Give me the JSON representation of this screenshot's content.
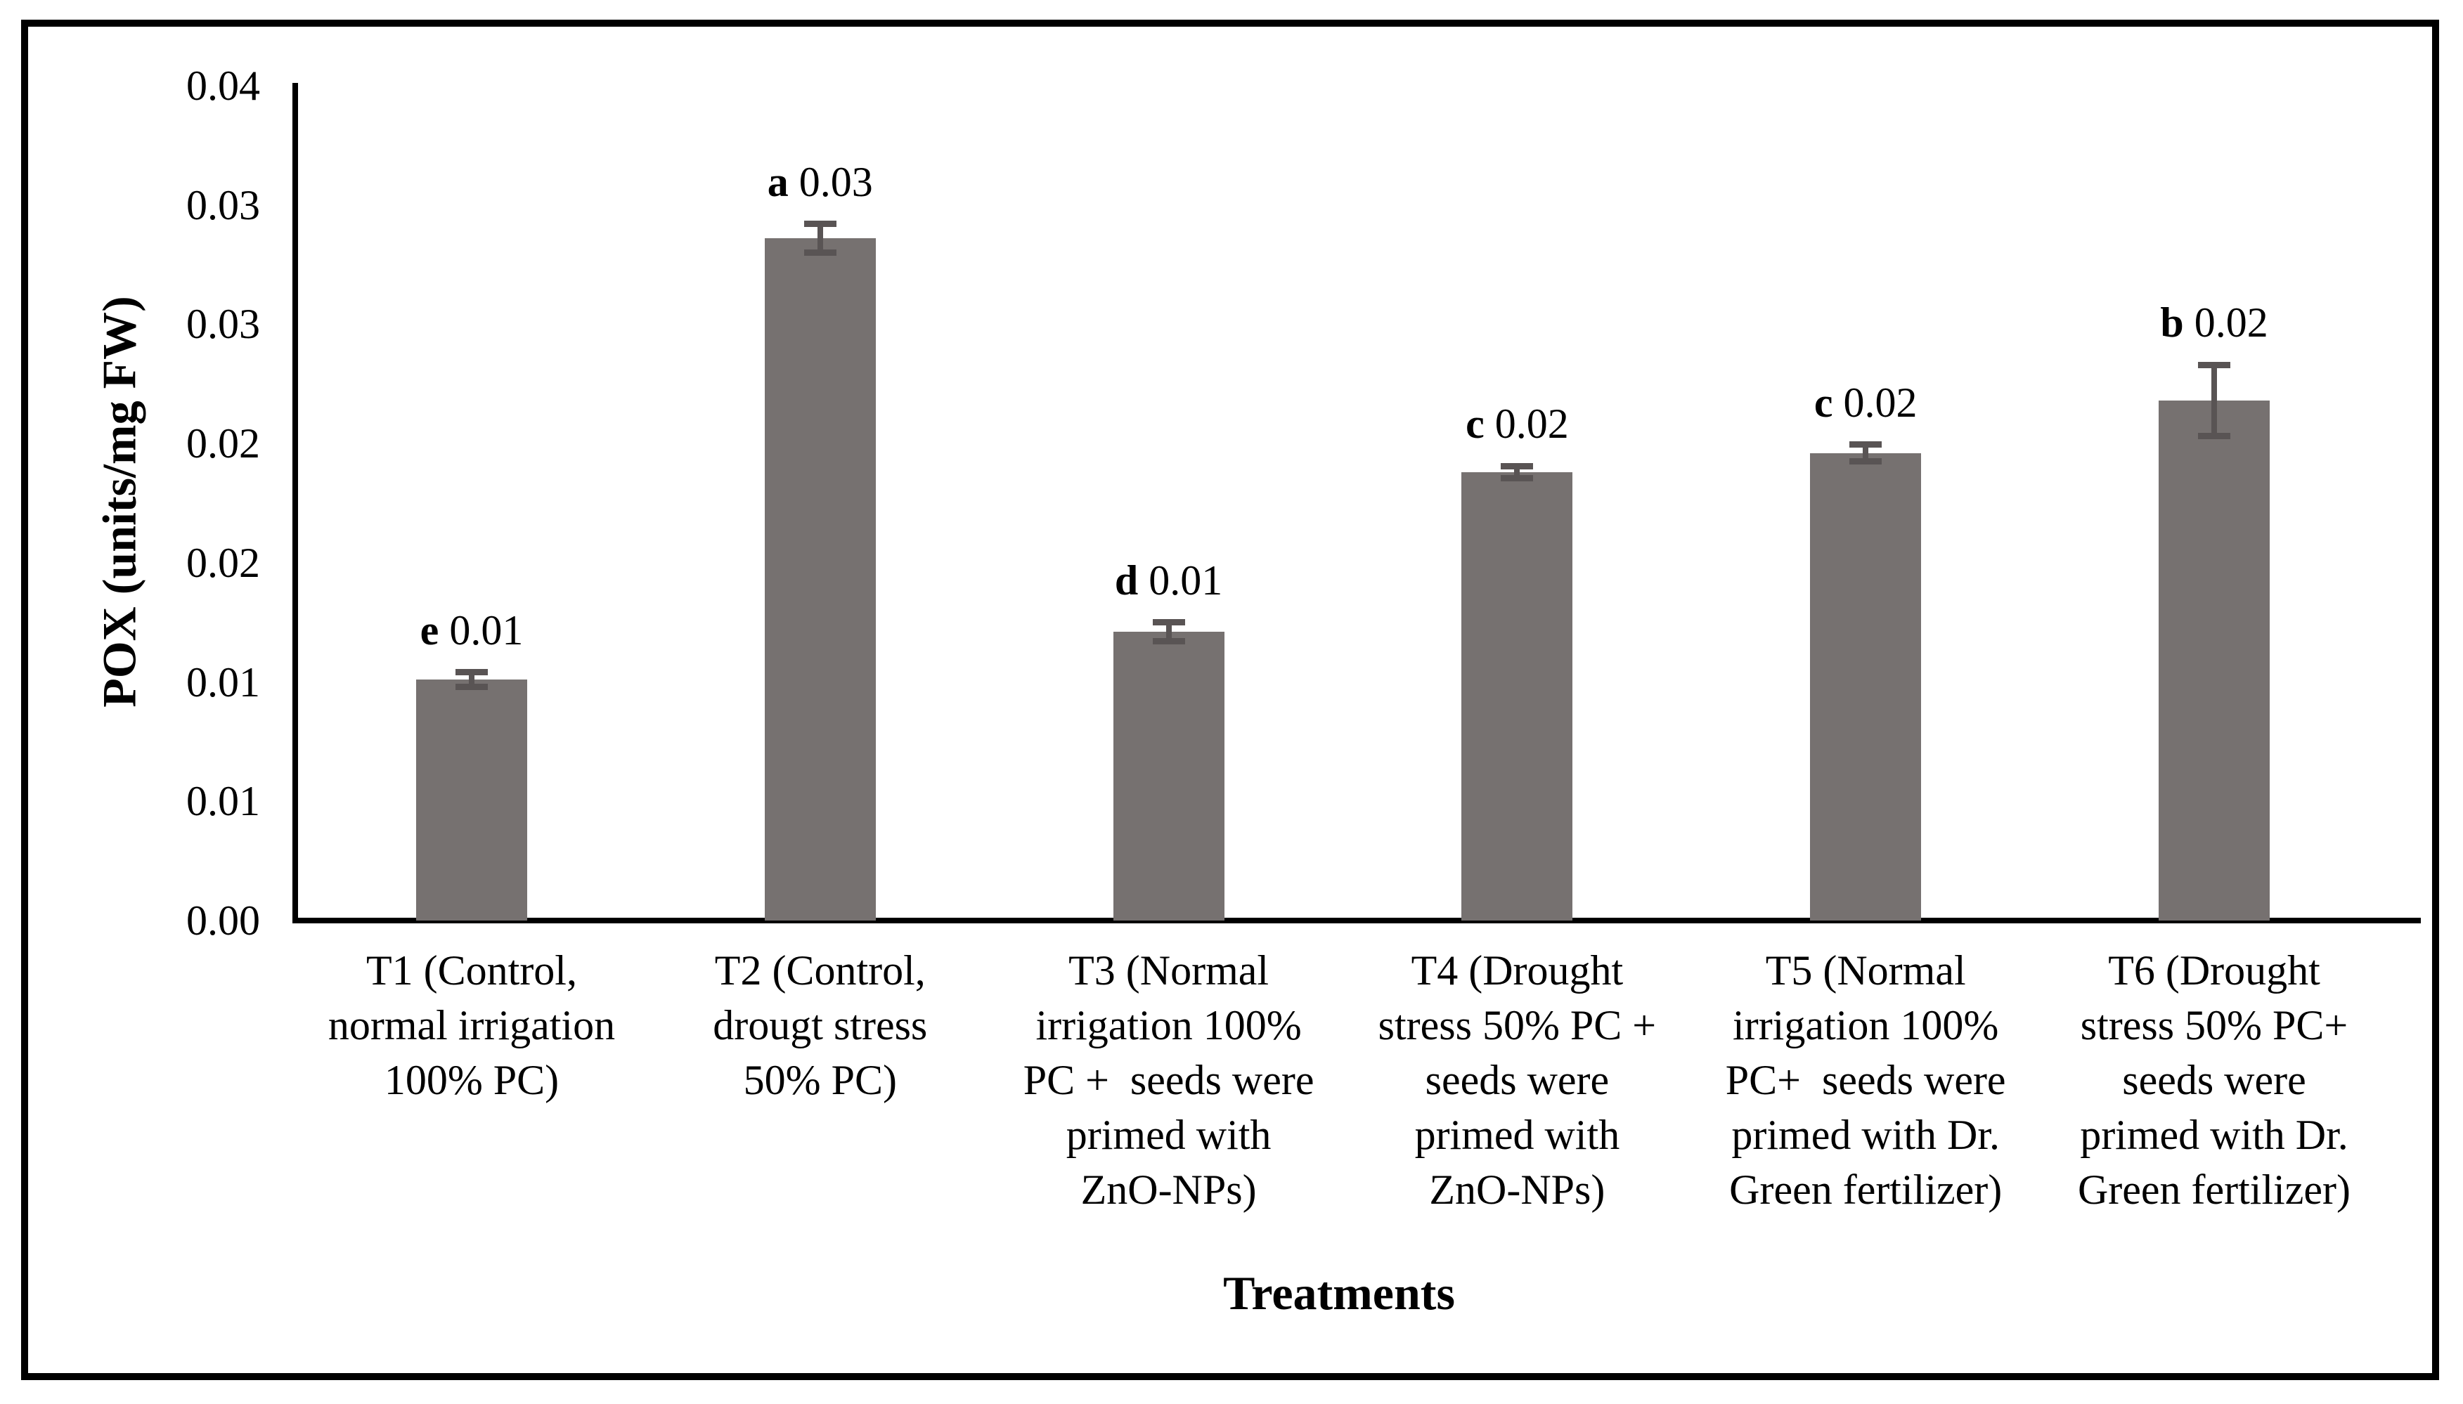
{
  "chart_data": {
    "type": "bar",
    "title": "",
    "xlabel": "Treatments",
    "ylabel": "POX (units/mg FW)",
    "ylim": [
      0,
      0.035
    ],
    "y_tick_interval": 0.005,
    "grid": false,
    "legend": "none",
    "bar_color": "#767170",
    "error_bar_color": "#595454",
    "y_ticks": [
      {
        "v": 0.0,
        "label": "0.00"
      },
      {
        "v": 0.005,
        "label": "0.01"
      },
      {
        "v": 0.01,
        "label": "0.01"
      },
      {
        "v": 0.015,
        "label": "0.02"
      },
      {
        "v": 0.02,
        "label": "0.02"
      },
      {
        "v": 0.025,
        "label": "0.03"
      },
      {
        "v": 0.03,
        "label": "0.03"
      },
      {
        "v": 0.035,
        "label": "0.04"
      }
    ],
    "categories": [
      "T1 (Control, normal irrigation 100% PC)",
      "T2 (Control, drougt stress 50% PC)",
      "T3 (Normal irrigation 100% PC +  seeds were primed with ZnO-NPs)",
      "T4 (Drought stress 50% PC + seeds were primed with ZnO-NPs)",
      "T5 (Normal irrigation 100% PC+  seeds were primed with Dr. Green fertilizer)",
      "T6 (Drought stress 50% PC+ seeds were primed with Dr. Green fertilizer)"
    ],
    "category_lines": [
      [
        "T1 (Control,",
        "normal irrigation",
        "100% PC)"
      ],
      [
        "T2 (Control,",
        "drougt stress",
        "50% PC)"
      ],
      [
        "T3 (Normal",
        "irrigation 100%",
        "PC +  seeds were",
        "primed with",
        "ZnO-NPs)"
      ],
      [
        "T4 (Drought",
        "stress 50% PC +",
        "seeds were",
        "primed with",
        "ZnO-NPs)"
      ],
      [
        "T5 (Normal",
        "irrigation 100%",
        "PC+  seeds were",
        "primed with Dr.",
        "Green fertilizer)"
      ],
      [
        "T6 (Drought",
        "stress 50% PC+",
        "seeds were",
        "primed with Dr.",
        "Green fertilizer)"
      ]
    ],
    "values": [
      0.0101,
      0.0286,
      0.0121,
      0.0188,
      0.0196,
      0.0218
    ],
    "errors": [
      0.0003,
      0.0006,
      0.0004,
      0.00025,
      0.00035,
      0.0015
    ],
    "data_labels": [
      {
        "letter": "e",
        "value": "0.01"
      },
      {
        "letter": "a",
        "value": "0.03"
      },
      {
        "letter": "d",
        "value": "0.01"
      },
      {
        "letter": "c",
        "value": "0.02"
      },
      {
        "letter": "c",
        "value": "0.02"
      },
      {
        "letter": "b",
        "value": "0.02"
      }
    ]
  }
}
